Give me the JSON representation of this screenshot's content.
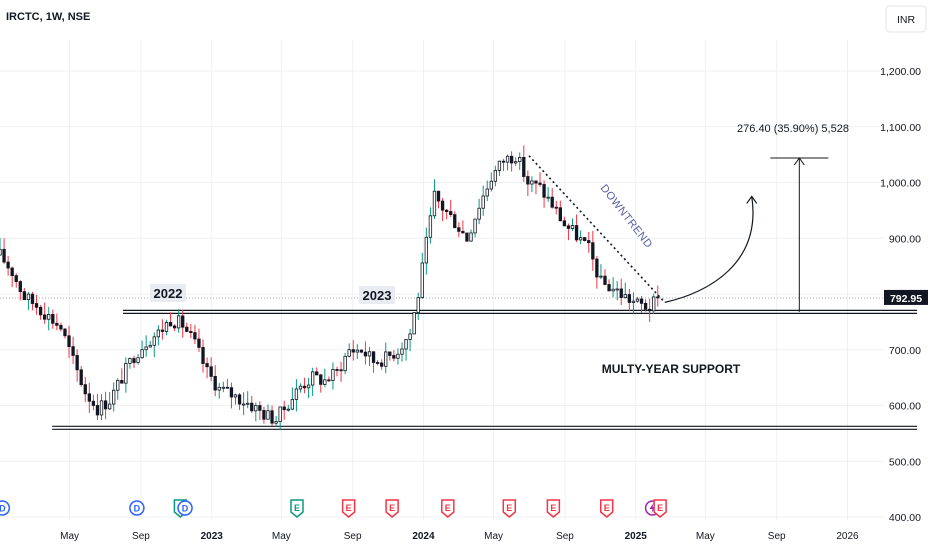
{
  "header": {
    "symbol": "IRCTC, 1W, NSE",
    "currency_button": "INR"
  },
  "colors": {
    "up": "#089981",
    "down": "#f23645",
    "bull_fill": "#ffffff",
    "bear_fill": "#131722",
    "downtrend_text": "#5b5ea6",
    "grid": "#eef0f3"
  },
  "chart_data": {
    "type": "candlestick",
    "title": "IRCTC, 1W, NSE",
    "y_ticks": [
      "1,200.00",
      "1,100.00",
      "1,000.00",
      "900.00",
      "800.00",
      "700.00",
      "600.00",
      "500.00",
      "400.00"
    ],
    "y_tick_values": [
      1200,
      1100,
      1000,
      900,
      800,
      700,
      600,
      500,
      400
    ],
    "ylim": [
      380,
      1260
    ],
    "x_ticks": [
      {
        "label": "May",
        "date": "2022-05-01",
        "year": false
      },
      {
        "label": "Sep",
        "date": "2022-09-01",
        "year": false
      },
      {
        "label": "2023",
        "date": "2023-01-01",
        "year": true
      },
      {
        "label": "May",
        "date": "2023-05-01",
        "year": false
      },
      {
        "label": "Sep",
        "date": "2023-09-01",
        "year": false
      },
      {
        "label": "2024",
        "date": "2024-01-01",
        "year": true
      },
      {
        "label": "May",
        "date": "2024-05-01",
        "year": false
      },
      {
        "label": "Sep",
        "date": "2024-09-01",
        "year": false
      },
      {
        "label": "2025",
        "date": "2025-01-01",
        "year": true
      },
      {
        "label": "May",
        "date": "2025-05-01",
        "year": false
      },
      {
        "label": "Sep",
        "date": "2025-09-01",
        "year": false
      },
      {
        "label": "2026",
        "date": "2026-01-01",
        "year": false
      }
    ],
    "last_price": 792.95,
    "last_price_label": "792.95",
    "path": [
      [
        "2022-01-01",
        870
      ],
      [
        "2022-01-22",
        840
      ],
      [
        "2022-02-12",
        795
      ],
      [
        "2022-03-05",
        780
      ],
      [
        "2022-03-26",
        760
      ],
      [
        "2022-04-16",
        740
      ],
      [
        "2022-05-07",
        680
      ],
      [
        "2022-05-28",
        625
      ],
      [
        "2022-06-18",
        595
      ],
      [
        "2022-07-09",
        610
      ],
      [
        "2022-07-30",
        650
      ],
      [
        "2022-08-20",
        690
      ],
      [
        "2022-09-10",
        715
      ],
      [
        "2022-10-01",
        730
      ],
      [
        "2022-10-22",
        755
      ],
      [
        "2022-11-12",
        745
      ],
      [
        "2022-12-03",
        710
      ],
      [
        "2022-12-24",
        660
      ],
      [
        "2023-01-14",
        630
      ],
      [
        "2023-02-04",
        620
      ],
      [
        "2023-03-04",
        605
      ],
      [
        "2023-04-01",
        585
      ],
      [
        "2023-04-22",
        575
      ],
      [
        "2023-05-13",
        605
      ],
      [
        "2023-06-03",
        635
      ],
      [
        "2023-06-24",
        650
      ],
      [
        "2023-07-15",
        645
      ],
      [
        "2023-08-05",
        660
      ],
      [
        "2023-08-26",
        700
      ],
      [
        "2023-09-16",
        700
      ],
      [
        "2023-10-07",
        680
      ],
      [
        "2023-10-28",
        685
      ],
      [
        "2023-11-18",
        700
      ],
      [
        "2023-12-09",
        730
      ],
      [
        "2023-12-23",
        800
      ],
      [
        "2024-01-06",
        890
      ],
      [
        "2024-01-20",
        975
      ],
      [
        "2024-02-03",
        955
      ],
      [
        "2024-02-24",
        930
      ],
      [
        "2024-03-16",
        900
      ],
      [
        "2024-04-06",
        960
      ],
      [
        "2024-04-27",
        1010
      ],
      [
        "2024-05-18",
        1040
      ],
      [
        "2024-06-08",
        1050
      ],
      [
        "2024-06-29",
        1000
      ],
      [
        "2024-07-20",
        990
      ],
      [
        "2024-08-10",
        960
      ],
      [
        "2024-08-31",
        925
      ],
      [
        "2024-09-21",
        905
      ],
      [
        "2024-10-12",
        880
      ],
      [
        "2024-11-02",
        820
      ],
      [
        "2024-11-23",
        810
      ],
      [
        "2024-12-14",
        795
      ],
      [
        "2025-01-04",
        782
      ],
      [
        "2025-01-25",
        776
      ],
      [
        "2025-02-08",
        790
      ]
    ],
    "support_lines": [
      {
        "name": "upper",
        "price": 768,
        "from": "2022-08-01",
        "to": "2026-05-01"
      },
      {
        "name": "lower",
        "price": 560,
        "from": "2022-04-01",
        "to": "2026-05-01"
      }
    ],
    "downtrend_line": {
      "from": [
        "2024-07-01",
        1048
      ],
      "to": [
        "2025-02-20",
        785
      ]
    },
    "projection_curve": {
      "from": [
        "2025-02-20",
        785
      ],
      "to": [
        "2025-07-20",
        975
      ]
    },
    "measure": {
      "date": "2025-10-10",
      "from_price": 768,
      "to_price": 1044,
      "label": "276.40 (35.90%) 5,528"
    },
    "labels": {
      "year_2022": "2022",
      "year_2023": "2023",
      "downtrend": "DOWNTREND",
      "support": "MULTY-YEAR SUPPORT"
    },
    "events": [
      {
        "type": "D",
        "date": "2022-01-05"
      },
      {
        "type": "D",
        "date": "2022-08-25"
      },
      {
        "type": "E",
        "date": "2022-11-08"
      },
      {
        "type": "D",
        "date": "2022-11-16"
      },
      {
        "type": "E",
        "date": "2023-05-28"
      },
      {
        "type": "E",
        "date": "2023-08-25"
      },
      {
        "type": "E",
        "date": "2023-11-08"
      },
      {
        "type": "E",
        "date": "2024-02-12"
      },
      {
        "type": "E",
        "date": "2024-05-28"
      },
      {
        "type": "E",
        "date": "2024-08-12"
      },
      {
        "type": "E",
        "date": "2024-11-12"
      },
      {
        "type": "S",
        "date": "2025-01-30"
      },
      {
        "type": "E",
        "date": "2025-02-12"
      }
    ]
  }
}
